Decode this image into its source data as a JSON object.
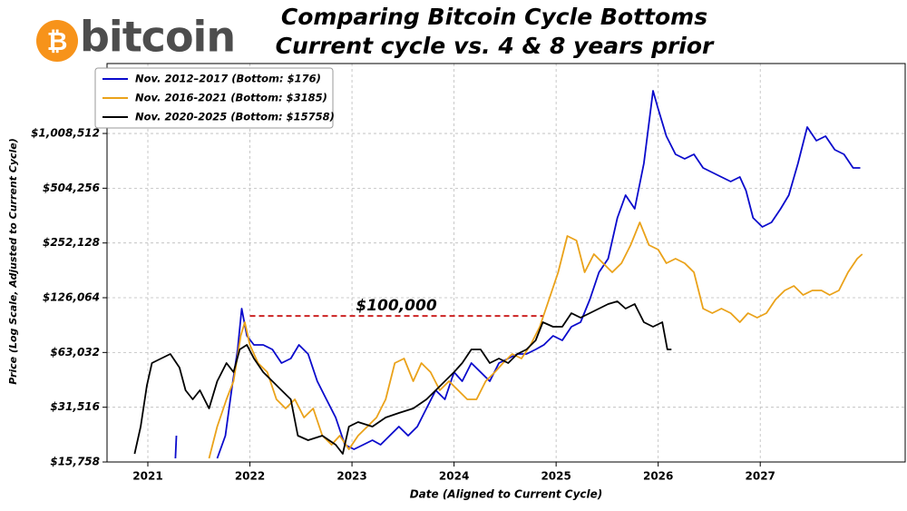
{
  "logo": {
    "symbol": "₿",
    "text": "bitcoin"
  },
  "chart_data": {
    "type": "line",
    "title": [
      "Comparing Bitcoin Cycle Bottoms",
      "Current cycle vs. 4 & 8 years prior"
    ],
    "xlabel": "Date (Aligned to Current Cycle)",
    "ylabel": "Price (Log Scale, Adjusted to Current Cycle)",
    "log_y": true,
    "grid": true,
    "legend": "upper left",
    "xlim": [
      2020.6,
      2028.42
    ],
    "xticks": [
      2021,
      2022,
      2023,
      2024,
      2025,
      2026,
      2027
    ],
    "ylim": [
      15758,
      2444000
    ],
    "yticks": [
      {
        "value": 15758,
        "label": "$15,758"
      },
      {
        "value": 31516,
        "label": "$31,516"
      },
      {
        "value": 63032,
        "label": "$63,032"
      },
      {
        "value": 126064,
        "label": "$126,064"
      },
      {
        "value": 252128,
        "label": "$252,128"
      },
      {
        "value": 504256,
        "label": "$504,256"
      },
      {
        "value": 1008512,
        "label": "$1,008,512"
      }
    ],
    "annotation": {
      "text": "$100,000",
      "value": 100000,
      "x_start": 2022.0,
      "x_end": 2024.87,
      "color": "#cc2222"
    },
    "series": [
      {
        "name": "Nov. 2012–2017 (Bottom: $176)",
        "color": "#0a0acc",
        "x": [
          2021.27,
          2021.28,
          2021.45,
          2021.68,
          2021.76,
          2021.82,
          2021.88,
          2021.92,
          2021.97,
          2022.04,
          2022.13,
          2022.22,
          2022.31,
          2022.4,
          2022.48,
          2022.57,
          2022.66,
          2022.75,
          2022.84,
          2022.93,
          2023.02,
          2023.11,
          2023.2,
          2023.28,
          2023.37,
          2023.46,
          2023.55,
          2023.64,
          2023.73,
          2023.82,
          2023.91,
          2024.0,
          2024.08,
          2024.17,
          2024.26,
          2024.35,
          2024.44,
          2024.53,
          2024.62,
          2024.71,
          2024.8,
          2024.88,
          2024.97,
          2025.06,
          2025.15,
          2025.24,
          2025.33,
          2025.42,
          2025.51,
          2025.6,
          2025.68,
          2025.77,
          2025.86,
          2025.95,
          2026.0,
          2026.08,
          2026.17,
          2026.26,
          2026.35,
          2026.44,
          2026.53,
          2026.62,
          2026.71,
          2026.8,
          2026.86,
          2026.93,
          2027.02,
          2027.11,
          2027.2,
          2027.28,
          2027.37,
          2027.46,
          2027.55,
          2027.64,
          2027.73,
          2027.82,
          2027.91,
          2027.98
        ],
        "values": [
          16500,
          22000,
          null,
          16500,
          22000,
          39050,
          65490,
          109800,
          77810,
          69370,
          69370,
          65490,
          55140,
          58400,
          69370,
          61840,
          43810,
          34820,
          27670,
          19600,
          18510,
          19600,
          20760,
          19600,
          22000,
          24660,
          22000,
          24660,
          31040,
          39050,
          34820,
          49150,
          43810,
          55140,
          49150,
          43810,
          55140,
          58400,
          61840,
          61840,
          65490,
          69370,
          77810,
          73480,
          87310,
          92470,
          123200,
          173900,
          206600,
          346500,
          461900,
          388800,
          690300,
          1731000,
          1375000,
          974600,
          774500,
          731200,
          774500,
          651800,
          615700,
          581100,
          548700,
          581100,
          489100,
          346500,
          308900,
          327300,
          388800,
          461900,
          690300,
          1093000,
          920300,
          974600,
          820300,
          774500,
          651800,
          651800
        ]
      },
      {
        "name": "Nov. 2016-2021 (Bottom: $3185)",
        "color": "#eaa21a",
        "x": [
          2021.6,
          2021.68,
          2021.77,
          2021.84,
          2021.91,
          2021.95,
          2022.0,
          2022.08,
          2022.17,
          2022.26,
          2022.35,
          2022.44,
          2022.53,
          2022.62,
          2022.71,
          2022.8,
          2022.88,
          2022.97,
          2023.06,
          2023.15,
          2023.24,
          2023.33,
          2023.42,
          2023.51,
          2023.6,
          2023.68,
          2023.77,
          2023.86,
          2023.95,
          2024.04,
          2024.13,
          2024.22,
          2024.31,
          2024.4,
          2024.48,
          2024.57,
          2024.66,
          2024.75,
          2024.84,
          2024.93,
          2025.02,
          2025.11,
          2025.2,
          2025.28,
          2025.37,
          2025.46,
          2025.55,
          2025.64,
          2025.73,
          2025.82,
          2025.91,
          2026.0,
          2026.08,
          2026.17,
          2026.26,
          2026.35,
          2026.44,
          2026.53,
          2026.62,
          2026.71,
          2026.8,
          2026.88,
          2026.97,
          2027.06,
          2027.15,
          2027.24,
          2027.33,
          2027.42,
          2027.51,
          2027.6,
          2027.68,
          2027.77,
          2027.86,
          2027.95,
          2028.0
        ],
        "values": [
          16500,
          24660,
          34820,
          43810,
          77810,
          92470,
          69370,
          55140,
          49150,
          34820,
          31040,
          34820,
          27670,
          31040,
          22000,
          19600,
          22000,
          18510,
          22000,
          24660,
          27670,
          34820,
          55140,
          58400,
          43810,
          55140,
          49150,
          39050,
          43810,
          39050,
          34820,
          34820,
          43810,
          49150,
          55140,
          61840,
          58400,
          69370,
          87310,
          123200,
          173900,
          275300,
          260000,
          173900,
          218900,
          195100,
          173900,
          195100,
          245500,
          327300,
          245500,
          231800,
          195100,
          206600,
          195100,
          173900,
          109800,
          103700,
          109800,
          103700,
          92470,
          103700,
          97940,
          103700,
          123200,
          138200,
          146400,
          130500,
          138200,
          138200,
          130500,
          138200,
          173900,
          206600,
          218900
        ]
      },
      {
        "name": "Nov. 2020-2025 (Bottom: $15758)",
        "color": "#000000",
        "x": [
          2020.87,
          2020.93,
          2020.99,
          2021.04,
          2021.13,
          2021.22,
          2021.31,
          2021.37,
          2021.44,
          2021.51,
          2021.6,
          2021.68,
          2021.77,
          2021.84,
          2021.9,
          2021.97,
          2022.04,
          2022.13,
          2022.22,
          2022.31,
          2022.4,
          2022.47,
          2022.57,
          2022.71,
          2022.84,
          2022.91,
          2022.97,
          2023.06,
          2023.2,
          2023.33,
          2023.46,
          2023.6,
          2023.73,
          2023.82,
          2023.91,
          2024.0,
          2024.08,
          2024.17,
          2024.26,
          2024.35,
          2024.44,
          2024.53,
          2024.62,
          2024.71,
          2024.8,
          2024.87,
          2024.97,
          2025.06,
          2025.15,
          2025.24,
          2025.33,
          2025.42,
          2025.51,
          2025.6,
          2025.68,
          2025.77,
          2025.86,
          2025.95,
          2026.04,
          2026.09,
          2026.13
        ],
        "values": [
          17480,
          24660,
          41370,
          55140,
          58400,
          61840,
          52050,
          39050,
          34820,
          39050,
          31040,
          43810,
          55140,
          49150,
          65490,
          69370,
          58400,
          49150,
          43810,
          39050,
          34820,
          22000,
          20760,
          22000,
          19600,
          17480,
          24660,
          26130,
          24660,
          27670,
          29310,
          31040,
          34820,
          39050,
          43810,
          49150,
          55140,
          65490,
          65490,
          55140,
          58400,
          55140,
          61840,
          65490,
          73480,
          92470,
          87310,
          87310,
          103700,
          97940,
          103700,
          109800,
          116300,
          120400,
          109800,
          116300,
          92470,
          87310,
          92470,
          65490,
          65490
        ]
      }
    ]
  }
}
